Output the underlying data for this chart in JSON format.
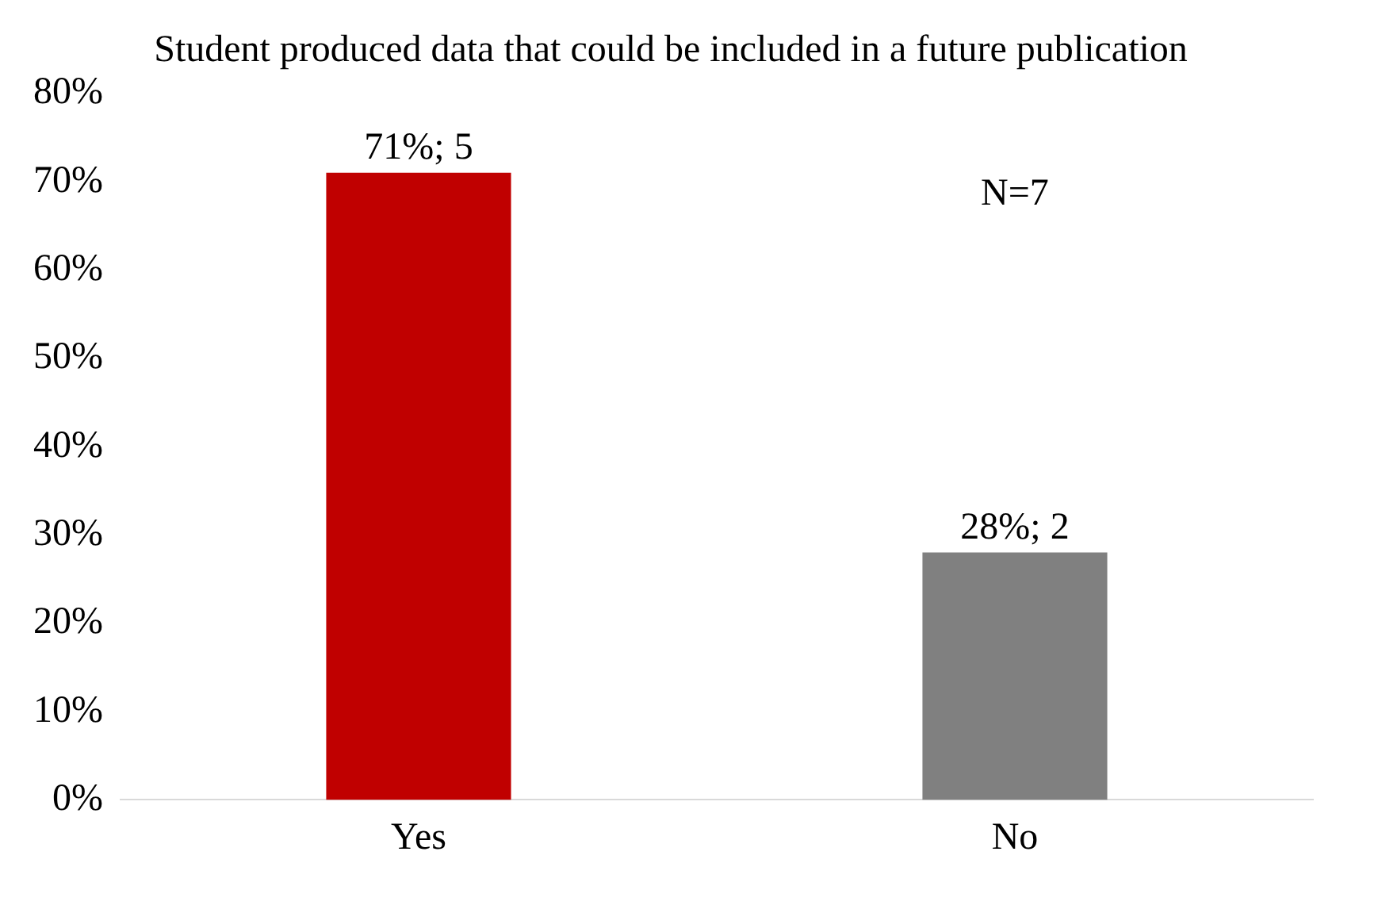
{
  "chart_data": {
    "type": "bar",
    "title": "Student produced data that could be included in a future publication",
    "categories": [
      "Yes",
      "No"
    ],
    "values": [
      71,
      28
    ],
    "colors": [
      "#c00000",
      "#808080"
    ],
    "value_labels": [
      "71%; 5",
      "28%; 2"
    ],
    "ylim": [
      0,
      80
    ],
    "yticks": [
      {
        "value": 0,
        "label": "0%"
      },
      {
        "value": 10,
        "label": "10%"
      },
      {
        "value": 20,
        "label": "20%"
      },
      {
        "value": 30,
        "label": "30%"
      },
      {
        "value": 40,
        "label": "40%"
      },
      {
        "value": 50,
        "label": "50%"
      },
      {
        "value": 60,
        "label": "60%"
      },
      {
        "value": 70,
        "label": "70%"
      },
      {
        "value": 80,
        "label": "80%"
      }
    ],
    "annotations": [
      "N=7"
    ],
    "grid": false,
    "legend": false
  }
}
